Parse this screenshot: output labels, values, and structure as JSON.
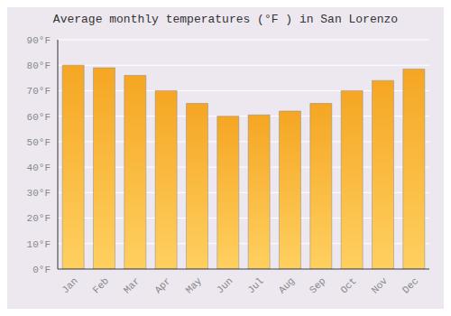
{
  "chart_data": {
    "type": "bar",
    "title": "Average monthly temperatures (°F ) in San Lorenzo",
    "categories": [
      "Jan",
      "Feb",
      "Mar",
      "Apr",
      "May",
      "Jun",
      "Jul",
      "Aug",
      "Sep",
      "Oct",
      "Nov",
      "Dec"
    ],
    "values": [
      80,
      79,
      76,
      70,
      65,
      60,
      60.5,
      62,
      65,
      70,
      74,
      78.5
    ],
    "color": "#F5A623",
    "ylim": [
      0,
      90
    ],
    "yticks": [
      {
        "value": 0,
        "label": "0°F"
      },
      {
        "value": 10,
        "label": "10°F"
      },
      {
        "value": 20,
        "label": "20°F"
      },
      {
        "value": 30,
        "label": "30°F"
      },
      {
        "value": 40,
        "label": "40°F"
      },
      {
        "value": 50,
        "label": "50°F"
      },
      {
        "value": 60,
        "label": "60°F"
      },
      {
        "value": 70,
        "label": "70°F"
      },
      {
        "value": 80,
        "label": "80°F"
      },
      {
        "value": 90,
        "label": "90°F"
      }
    ],
    "grid": true
  }
}
